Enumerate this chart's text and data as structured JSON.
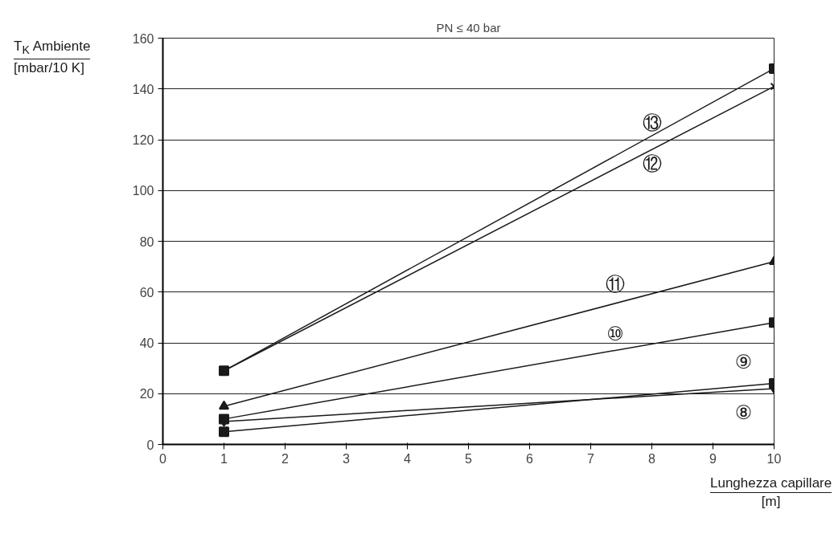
{
  "chart_data": {
    "type": "line",
    "title": "PN ≤ 40 bar",
    "ylabel": "T$_{K}$ Ambiente [mbar/10 K]",
    "xlabel": "Lunghezza capillare [m]",
    "xlim": [
      0,
      10
    ],
    "ylim": [
      0,
      160
    ],
    "xticks": [
      0,
      1,
      2,
      3,
      4,
      5,
      6,
      7,
      8,
      9,
      10
    ],
    "yticks": [
      0,
      20,
      40,
      60,
      80,
      100,
      120,
      140,
      160
    ],
    "grid": "y",
    "x": [
      1,
      10
    ],
    "series": [
      {
        "name": "⑬",
        "color": "#1a1a1a",
        "marker": "square",
        "values": [
          29,
          148
        ]
      },
      {
        "name": "⑫",
        "color": "#1a1a1a",
        "marker": "cross",
        "values": [
          29,
          141
        ]
      },
      {
        "name": "⑪",
        "color": "#1a1a1a",
        "marker": "triangle",
        "values": [
          15,
          72
        ]
      },
      {
        "name": "⑩",
        "color": "#1a1a1a",
        "marker": "square",
        "values": [
          10,
          48
        ]
      },
      {
        "name": "⑨",
        "color": "#1a1a1a",
        "marker": "square",
        "values": [
          5,
          24
        ]
      },
      {
        "name": "⑧",
        "color": "#1a1a1a",
        "marker": "diamond",
        "values": [
          9,
          22
        ]
      }
    ]
  }
}
